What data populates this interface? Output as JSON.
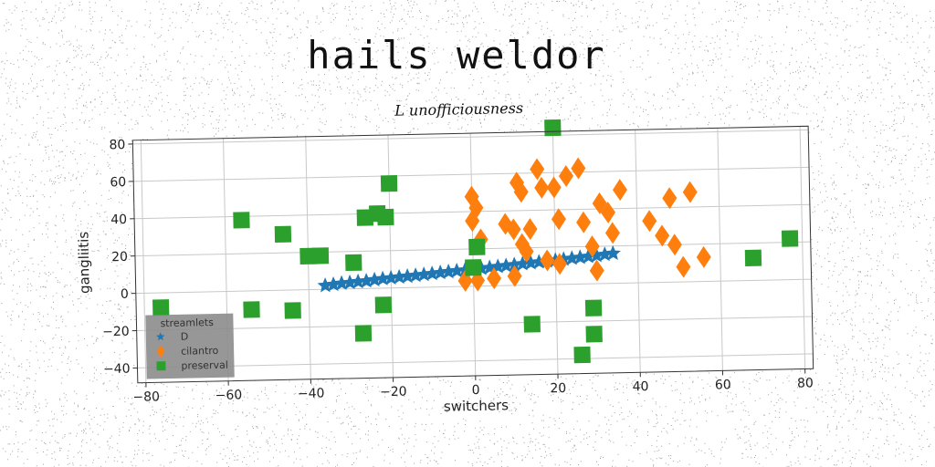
{
  "page": {
    "title": "hails weldor"
  },
  "chart_data": {
    "type": "scatter",
    "title": "L unofficiousness",
    "xlabel": "switchers",
    "ylabel": "gangliitis",
    "xlim": [
      -82,
      82
    ],
    "ylim": [
      -48,
      82
    ],
    "xticks": [
      -80,
      -60,
      -40,
      -20,
      0,
      20,
      40,
      60,
      80
    ],
    "yticks": [
      -40,
      -20,
      0,
      20,
      40,
      60,
      80
    ],
    "grid": true,
    "legend": {
      "title": "streamlets",
      "position": "lower-left"
    },
    "series": [
      {
        "name": "D",
        "marker": "star",
        "color": "#1f77b4",
        "points": [
          [
            -36,
            2
          ],
          [
            -34,
            2.5
          ],
          [
            -32,
            3
          ],
          [
            -30,
            3.3
          ],
          [
            -28,
            3.7
          ],
          [
            -26,
            4
          ],
          [
            -24,
            4.5
          ],
          [
            -22,
            5
          ],
          [
            -20,
            5.3
          ],
          [
            -18,
            5.7
          ],
          [
            -16,
            6
          ],
          [
            -14,
            6.4
          ],
          [
            -12,
            6.8
          ],
          [
            -10,
            7.2
          ],
          [
            -8,
            7.6
          ],
          [
            -6,
            8
          ],
          [
            -4,
            8.4
          ],
          [
            -2,
            8.7
          ],
          [
            0,
            9
          ],
          [
            2,
            9.4
          ],
          [
            4,
            9.8
          ],
          [
            6,
            10.2
          ],
          [
            8,
            10.6
          ],
          [
            10,
            11
          ],
          [
            12,
            11.4
          ],
          [
            14,
            11.8
          ],
          [
            16,
            12.2
          ],
          [
            18,
            12.6
          ],
          [
            20,
            13
          ],
          [
            22,
            13.4
          ],
          [
            24,
            13.8
          ],
          [
            26,
            14.2
          ],
          [
            28,
            14.6
          ],
          [
            30,
            15
          ],
          [
            32,
            15.5
          ],
          [
            34,
            16
          ]
        ]
      },
      {
        "name": "cilantro",
        "marker": "diamond",
        "color": "#ff7f0e",
        "points": [
          [
            -2,
            3
          ],
          [
            1,
            3
          ],
          [
            5,
            4
          ],
          [
            10,
            5
          ],
          [
            0,
            35
          ],
          [
            0,
            48
          ],
          [
            1,
            42
          ],
          [
            2,
            25
          ],
          [
            8,
            33
          ],
          [
            10,
            30
          ],
          [
            11,
            55
          ],
          [
            12,
            50
          ],
          [
            12,
            22
          ],
          [
            13,
            18
          ],
          [
            14,
            30
          ],
          [
            16,
            62
          ],
          [
            17,
            52
          ],
          [
            18,
            13
          ],
          [
            20,
            52
          ],
          [
            21,
            35
          ],
          [
            21,
            11
          ],
          [
            23,
            58
          ],
          [
            26,
            62
          ],
          [
            27,
            33
          ],
          [
            29,
            20
          ],
          [
            30,
            7
          ],
          [
            31,
            43
          ],
          [
            33,
            38
          ],
          [
            34,
            27
          ],
          [
            36,
            50
          ],
          [
            43,
            33
          ],
          [
            46,
            25
          ],
          [
            48,
            45
          ],
          [
            49,
            20
          ],
          [
            51,
            8
          ],
          [
            53,
            48
          ],
          [
            56,
            13
          ]
        ]
      },
      {
        "name": "preserval",
        "marker": "square",
        "color": "#2ca02c",
        "points": [
          [
            -76,
            -8
          ],
          [
            -54,
            -10
          ],
          [
            -56,
            38
          ],
          [
            -46,
            30
          ],
          [
            -44,
            -11
          ],
          [
            -40,
            18
          ],
          [
            -37,
            18
          ],
          [
            -29,
            14
          ],
          [
            -26,
            38
          ],
          [
            -23,
            40
          ],
          [
            -21,
            38
          ],
          [
            -22,
            -9
          ],
          [
            -20,
            56
          ],
          [
            -27,
            -24
          ],
          [
            0,
            10
          ],
          [
            1,
            21
          ],
          [
            14,
            -21
          ],
          [
            20,
            84
          ],
          [
            26,
            -38
          ],
          [
            29,
            -27
          ],
          [
            29,
            -13
          ],
          [
            68,
            12
          ],
          [
            77,
            22
          ]
        ]
      }
    ]
  }
}
